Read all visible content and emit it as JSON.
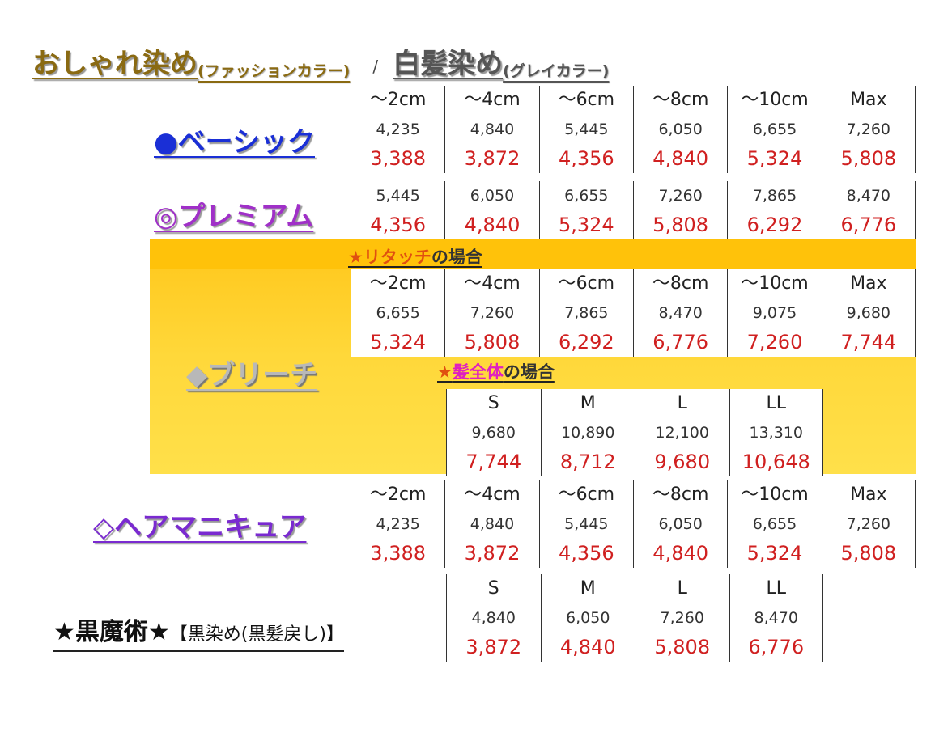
{
  "header": {
    "fashion_title": "おしゃれ染め",
    "fashion_sub": "(ファッションカラー)",
    "separator": "/",
    "gray_title": "白髪染め",
    "gray_sub": "(グレイカラー)"
  },
  "basic": {
    "label": "●ベーシック",
    "headers": [
      "～2cm",
      "～4cm",
      "～6cm",
      "～8cm",
      "～10cm",
      "Max"
    ],
    "prices": [
      "4,235",
      "4,840",
      "5,445",
      "6,050",
      "6,655",
      "7,260"
    ],
    "discount": [
      "3,388",
      "3,872",
      "4,356",
      "4,840",
      "5,324",
      "5,808"
    ]
  },
  "premium": {
    "label": "◎プレミアム",
    "prices": [
      "5,445",
      "6,050",
      "6,655",
      "7,260",
      "7,865",
      "8,470"
    ],
    "discount": [
      "4,356",
      "4,840",
      "5,324",
      "5,808",
      "6,292",
      "6,776"
    ]
  },
  "bleach": {
    "label": "◆ブリーチ",
    "retouch_star": "★リタッチ",
    "retouch_case": "の場合",
    "retouch_headers": [
      "～2cm",
      "～4cm",
      "～6cm",
      "～8cm",
      "～10cm",
      "Max"
    ],
    "retouch_prices": [
      "6,655",
      "7,260",
      "7,865",
      "8,470",
      "9,075",
      "9,680"
    ],
    "retouch_discount": [
      "5,324",
      "5,808",
      "6,292",
      "6,776",
      "7,260",
      "7,744"
    ],
    "whole_star": "★",
    "whole_word": "髪全体",
    "whole_case": "の場合",
    "whole_headers": [
      "S",
      "M",
      "L",
      "LL"
    ],
    "whole_prices": [
      "9,680",
      "10,890",
      "12,100",
      "13,310"
    ],
    "whole_discount": [
      "7,744",
      "8,712",
      "9,680",
      "10,648"
    ]
  },
  "manicure": {
    "label": "◇ヘアマニキュア",
    "headers": [
      "～2cm",
      "～4cm",
      "～6cm",
      "～8cm",
      "～10cm",
      "Max"
    ],
    "prices": [
      "4,235",
      "4,840",
      "5,445",
      "6,050",
      "6,655",
      "7,260"
    ],
    "discount": [
      "3,388",
      "3,872",
      "4,356",
      "4,840",
      "5,324",
      "5,808"
    ]
  },
  "black": {
    "label": "★黒魔術★",
    "sub": "【黒染め(黒髪戻し)】",
    "headers": [
      "S",
      "M",
      "L",
      "LL"
    ],
    "prices": [
      "4,840",
      "6,050",
      "7,260",
      "8,470"
    ],
    "discount": [
      "3,872",
      "4,840",
      "5,808",
      "6,776"
    ]
  },
  "colors": {
    "accent_gold": "#8a6a12",
    "basic_blue": "#1a2fd6",
    "premium_purple": "#a030c8",
    "manicure_purple": "#7a2ad0",
    "discount_red": "#d02020",
    "band_yellow": "#ffc61a"
  }
}
